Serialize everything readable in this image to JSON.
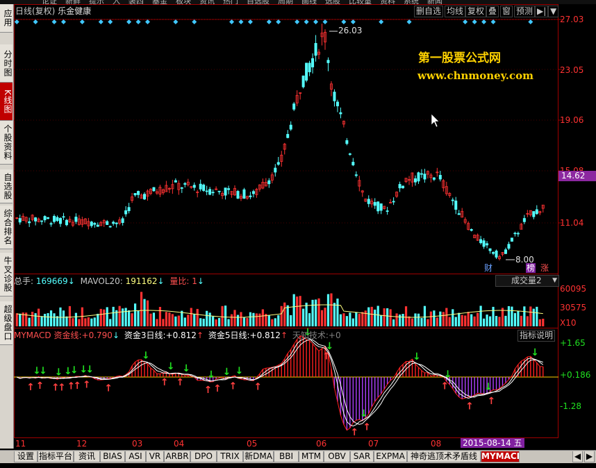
{
  "top_menu_clipped": [
    "论证",
    "新鲜",
    "提示",
    "入",
    "装四",
    "基金",
    "板块",
    "资讯",
    "热门",
    "自选股",
    "周期",
    "画线",
    "选股",
    "比较量",
    "资料",
    "系统",
    "新闻"
  ],
  "left_nav": [
    {
      "label": "应用",
      "active": false
    },
    {
      "label": "分时图",
      "active": false
    },
    {
      "label": "K线图",
      "active": true
    },
    {
      "label": "个股资料",
      "active": false
    },
    {
      "label": "自选股",
      "active": false
    },
    {
      "label": "综合排名",
      "active": false
    },
    {
      "label": "牛叉诊股",
      "active": false
    },
    {
      "label": "超级盘口",
      "active": false
    }
  ],
  "header": {
    "title_prefix": "日线(复权)",
    "stock_name": "乐金健康",
    "buttons": [
      "删自选",
      "均线",
      "复权",
      "叠",
      "窗",
      "预测"
    ],
    "nav_arrow": "▶|",
    "dropdown": "▼"
  },
  "watermark": {
    "line1": "第一股票公式网",
    "line2": "www.chnmoney.com"
  },
  "price_axis": [
    "27.03",
    "23.05",
    "19.06",
    "15.08",
    "11.04"
  ],
  "current_price_tag": "14.62",
  "annotations": {
    "high": "26.03",
    "low": "8.00"
  },
  "badges": {
    "cai": "财",
    "bang": "榜",
    "zhang": "涨"
  },
  "volume_panel": {
    "total_label": "总手:",
    "total_value": "169669",
    "mavol_label": "MAVOL20:",
    "mavol_value": "191162",
    "ratio_label": "量比:",
    "ratio_value": "1",
    "selector": "成交量2",
    "axis": [
      "60095",
      "30575",
      "X10"
    ]
  },
  "macd_panel": {
    "name": "MYMACD",
    "l1_label": "资金线:",
    "l1_value": "+0.790",
    "l2_label": "资金3日线:",
    "l2_value": "+0.812",
    "l3_label": "资金5日线:",
    "l3_value": "+0.812",
    "l4_label": "天知技术:",
    "l4_value": "+0",
    "help_btn": "指标说明",
    "axis": [
      "+1.65",
      "+0.186",
      "-1.28"
    ]
  },
  "months": [
    "11",
    "12",
    "03",
    "04",
    "05",
    "06",
    "07",
    "08"
  ],
  "cursor_date": "2015-08-14 五",
  "bottom_tabs": [
    "设置",
    "指标平台",
    "资讯",
    "BIAS",
    "ASI",
    "VR",
    "ARBR",
    "DPO",
    "TRIX",
    "新DMA",
    "BBI",
    "MTM",
    "OBV",
    "SAR",
    "EXPMA",
    "神奇逃顶术矛盾线",
    "MYMACD"
  ],
  "bottom_tab_active": "MYMACD",
  "colors": {
    "up": "#ff3232",
    "down": "#54ffff",
    "axis": "#a00000",
    "ma": "#ffff80",
    "macd_pos": "#ff2020",
    "macd_neg": "#b040ff",
    "arrow_up": "#ff4040",
    "arrow_down": "#20e020"
  }
}
